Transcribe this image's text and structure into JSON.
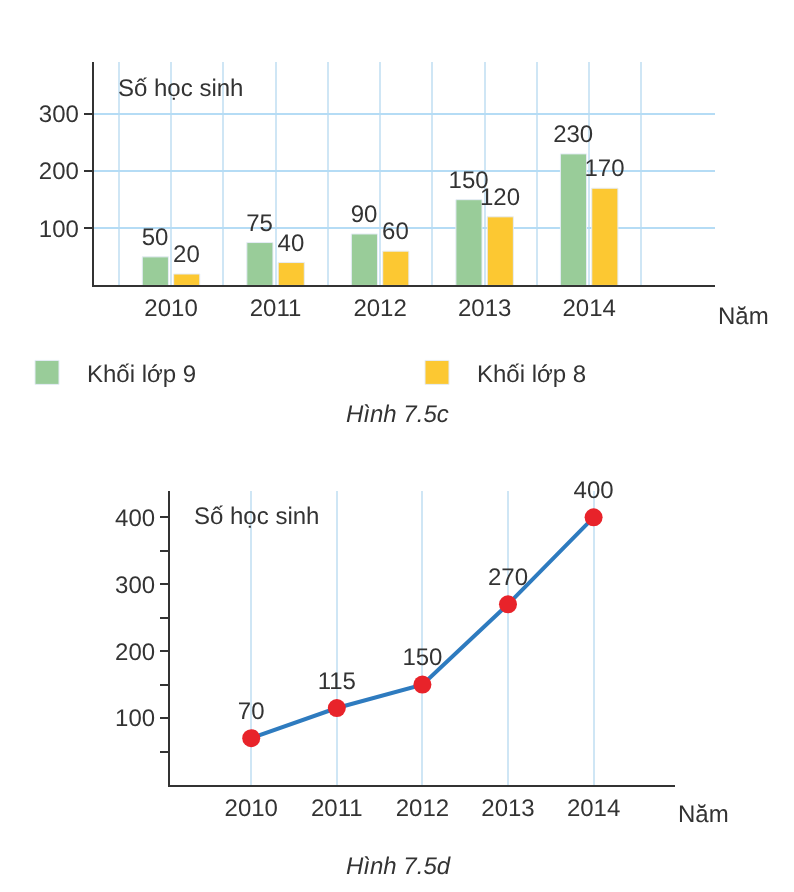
{
  "chart_data": [
    {
      "type": "bar",
      "categories": [
        "2010",
        "2011",
        "2012",
        "2013",
        "2014"
      ],
      "xlabel": "Năm",
      "ylabel": "Số học sinh",
      "ylim": [
        0,
        390
      ],
      "yticks": [
        100,
        200,
        300
      ],
      "grid": true,
      "legend": "bottom",
      "data_labels": true,
      "annotations": [
        "Hình 7.5c"
      ],
      "series": [
        {
          "name": "Khối lớp 9",
          "color": "#99cc99",
          "values": [
            50,
            75,
            90,
            150,
            230
          ]
        },
        {
          "name": "Khối lớp 8",
          "color": "#fcc832",
          "values": [
            20,
            40,
            60,
            120,
            170
          ]
        }
      ]
    },
    {
      "type": "line",
      "categories": [
        "2010",
        "2011",
        "2012",
        "2013",
        "2014"
      ],
      "xlabel": "Năm",
      "ylabel": "Số học sinh",
      "ylim": [
        0,
        440
      ],
      "yticks": [
        {
          "value": 50,
          "label": null
        },
        100,
        {
          "value": 150,
          "label": null
        },
        200,
        {
          "value": 250,
          "label": null
        },
        300,
        {
          "value": 350,
          "label": null
        },
        400
      ],
      "grid": "x",
      "marker": "circle",
      "data_labels": true,
      "annotations": [
        "Hình 7.5d"
      ],
      "series": [
        {
          "color": "#2e7bbf",
          "colors": [
            "#e8232a",
            "#e8232a",
            "#e8232a",
            "#e8232a",
            "#e8232a"
          ],
          "values": [
            70,
            115,
            150,
            270,
            400
          ]
        }
      ]
    }
  ]
}
